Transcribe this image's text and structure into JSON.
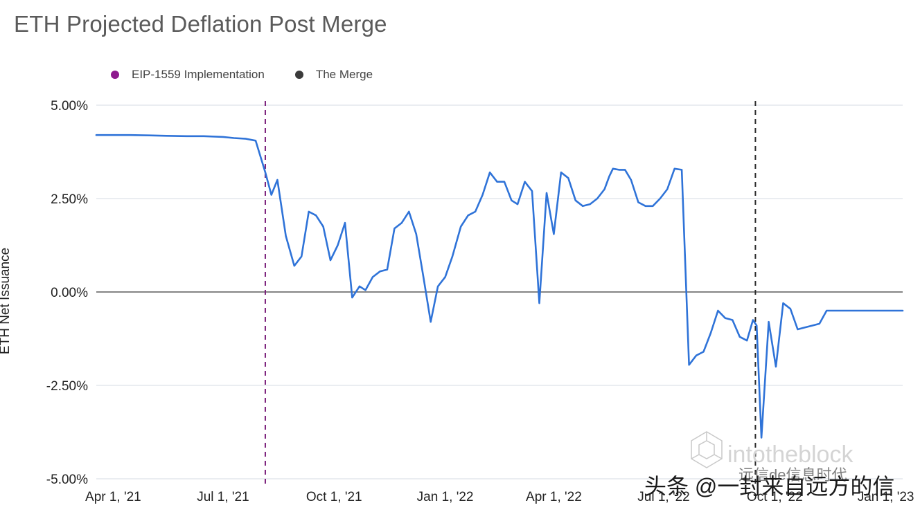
{
  "chart_data": {
    "type": "line",
    "title": "ETH Projected Deflation Post Merge",
    "ylabel": "ETH Net Issuance",
    "xlabel": "",
    "ylim": [
      -5.0,
      5.0
    ],
    "xlim": [
      "2021-03-18",
      "2023-01-15"
    ],
    "y_ticks": [
      "5.00%",
      "2.50%",
      "0.00%",
      "-2.50%",
      "-5.00%"
    ],
    "y_tick_values": [
      5.0,
      2.5,
      0.0,
      -2.5,
      -5.0
    ],
    "x_ticks": [
      "Apr 1, '21",
      "Jul 1, '21",
      "Oct 1, '21",
      "Jan 1, '22",
      "Apr 1, '22",
      "Jul 1, '22",
      "Oct 1, '22",
      "Jan 1, '23"
    ],
    "x_tick_dates": [
      "2021-04-01",
      "2021-07-01",
      "2021-10-01",
      "2022-01-01",
      "2022-04-01",
      "2022-07-01",
      "2022-10-01",
      "2023-01-01"
    ],
    "grid": true,
    "legend_position": "top-left",
    "legend": [
      {
        "name": "EIP-1559 Implementation",
        "color": "#8e1a8e"
      },
      {
        "name": "The Merge",
        "color": "#3b3b3b"
      }
    ],
    "events": [
      {
        "name": "EIP-1559 Implementation",
        "date": "2021-08-05",
        "color": "#7b1f7b"
      },
      {
        "name": "The Merge",
        "date": "2022-09-15",
        "color": "#2b2b2b"
      }
    ],
    "line_color": "#2f73d8",
    "series": [
      {
        "x": [
          "2021-03-18",
          "2021-04-01",
          "2021-04-15",
          "2021-05-01",
          "2021-05-15",
          "2021-06-01",
          "2021-06-15",
          "2021-07-01",
          "2021-07-10",
          "2021-07-20",
          "2021-07-28",
          "2021-08-05",
          "2021-08-10",
          "2021-08-15",
          "2021-08-22",
          "2021-08-29",
          "2021-09-04",
          "2021-09-10",
          "2021-09-16",
          "2021-09-22",
          "2021-09-28",
          "2021-10-04",
          "2021-10-10",
          "2021-10-16",
          "2021-10-22",
          "2021-10-27",
          "2021-11-02",
          "2021-11-08",
          "2021-11-14",
          "2021-11-20",
          "2021-11-26",
          "2021-12-02",
          "2021-12-08",
          "2021-12-14",
          "2021-12-20",
          "2021-12-26",
          "2022-01-01",
          "2022-01-07",
          "2022-01-14",
          "2022-01-20",
          "2022-01-26",
          "2022-02-01",
          "2022-02-07",
          "2022-02-13",
          "2022-02-19",
          "2022-02-25",
          "2022-03-02",
          "2022-03-08",
          "2022-03-14",
          "2022-03-20",
          "2022-03-26",
          "2022-04-01",
          "2022-04-07",
          "2022-04-13",
          "2022-04-19",
          "2022-04-25",
          "2022-05-01",
          "2022-05-07",
          "2022-05-13",
          "2022-05-17",
          "2022-05-20",
          "2022-05-25",
          "2022-05-30",
          "2022-06-04",
          "2022-06-10",
          "2022-06-16",
          "2022-06-22",
          "2022-06-28",
          "2022-07-04",
          "2022-07-10",
          "2022-07-16",
          "2022-07-22",
          "2022-07-28",
          "2022-08-03",
          "2022-08-09",
          "2022-08-15",
          "2022-08-21",
          "2022-08-27",
          "2022-09-02",
          "2022-09-08",
          "2022-09-13",
          "2022-09-16",
          "2022-09-20",
          "2022-09-26",
          "2022-10-02",
          "2022-10-08",
          "2022-10-14",
          "2022-10-20",
          "2022-10-26",
          "2022-11-01",
          "2022-11-07",
          "2022-11-13",
          "2022-11-19",
          "2022-11-25",
          "2022-11-29",
          "2022-12-03",
          "2022-12-07",
          "2022-12-11",
          "2022-12-15",
          "2022-12-19",
          "2022-12-23",
          "2022-12-29",
          "2023-01-04",
          "2023-01-10",
          "2023-01-15"
        ],
        "y": [
          4.2,
          4.2,
          4.2,
          4.19,
          4.18,
          4.17,
          4.17,
          4.15,
          4.12,
          4.1,
          4.05,
          3.2,
          2.6,
          3.0,
          1.5,
          0.7,
          0.95,
          2.15,
          2.05,
          1.75,
          0.85,
          1.25,
          1.85,
          -0.15,
          0.15,
          0.05,
          0.4,
          0.55,
          0.6,
          1.7,
          1.85,
          2.15,
          1.55,
          0.4,
          -0.8,
          0.15,
          0.4,
          0.95,
          1.75,
          2.05,
          2.15,
          2.6,
          3.2,
          2.95,
          2.95,
          2.45,
          2.35,
          2.95,
          2.7,
          -0.3,
          2.65,
          1.55,
          3.2,
          3.05,
          2.45,
          2.3,
          2.35,
          2.5,
          2.75,
          3.1,
          3.3,
          3.27,
          3.27,
          3.0,
          2.4,
          2.3,
          2.3,
          2.5,
          2.75,
          3.3,
          3.27,
          -1.95,
          -1.7,
          -1.6,
          -1.1,
          -0.5,
          -0.7,
          -0.75,
          -1.2,
          -1.3,
          -0.75,
          -0.9,
          -3.9,
          -0.8,
          -2.0,
          -0.3,
          -0.45,
          -1.0,
          -0.95,
          -0.9,
          -0.85,
          -0.5,
          -0.5,
          -0.5,
          -0.5,
          -0.5,
          -0.5,
          -0.5,
          -0.5,
          -0.5,
          -0.5,
          -0.5,
          -0.5,
          -0.5,
          -0.5
        ]
      }
    ]
  },
  "watermark": {
    "brand": "intotheblock",
    "overlay": "头条 @一封来自远方的信",
    "overlay_top": "远信de信息时代"
  }
}
